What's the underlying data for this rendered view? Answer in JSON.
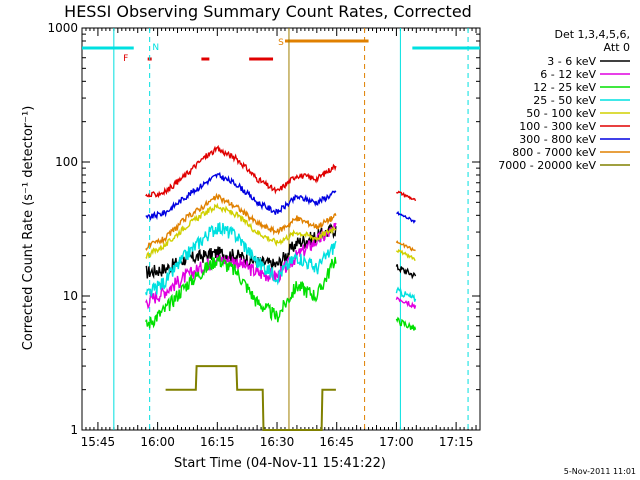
{
  "chart_data": {
    "type": "line",
    "title": "HESSI Observing Summary Count Rates, Corrected",
    "xlabel": "Start Time (04-Nov-11 15:41:22)",
    "ylabel": "Corrected Count Rate (s⁻¹ detector⁻¹)",
    "y_scale": "log",
    "ylim": [
      1,
      1000
    ],
    "xlim": [
      "15:41",
      "17:21"
    ],
    "x_ticks": [
      "15:45",
      "16:00",
      "16:15",
      "16:30",
      "16:45",
      "17:00",
      "17:15"
    ],
    "y_ticks": [
      "1",
      "10",
      "100",
      "1000"
    ],
    "legend_title": [
      "Det 1,3,4,5,6,",
      "Att 0"
    ],
    "legend_placement": "top-right, outside",
    "footer": "5-Nov-2011 11:01",
    "flags": {
      "F": {
        "label": "F",
        "color": "#e00000"
      },
      "N": {
        "label": "N",
        "color": "#00e0e0"
      },
      "S": {
        "label": "S",
        "color": "#e08000"
      }
    },
    "series": [
      {
        "name": "3 - 6 keV",
        "color": "#000000",
        "start": "15:57",
        "x": [
          "15:57",
          "16:02",
          "16:07",
          "16:12",
          "16:15",
          "16:20",
          "16:25",
          "16:30",
          "16:35",
          "16:40",
          "16:45"
        ],
        "y": [
          15,
          16,
          19,
          20,
          21,
          20,
          18,
          17,
          25,
          28,
          32
        ]
      },
      {
        "name": "6 - 12 keV",
        "color": "#e000e0",
        "start": "15:57",
        "x": [
          "15:57",
          "16:02",
          "16:07",
          "16:12",
          "16:15",
          "16:20",
          "16:25",
          "16:30",
          "16:35",
          "16:40",
          "16:45"
        ],
        "y": [
          9,
          11,
          14,
          17,
          19,
          18,
          15,
          14,
          20,
          26,
          32
        ]
      },
      {
        "name": "12 - 25 keV",
        "color": "#00e000",
        "start": "15:57",
        "x": [
          "15:57",
          "16:02",
          "16:07",
          "16:12",
          "16:15",
          "16:20",
          "16:25",
          "16:30",
          "16:35",
          "16:40",
          "16:45"
        ],
        "y": [
          6,
          8,
          12,
          16,
          19,
          15,
          9,
          7,
          12,
          10,
          20
        ]
      },
      {
        "name": "25 - 50 keV",
        "color": "#00e0e0",
        "start": "15:57",
        "x": [
          "15:57",
          "16:02",
          "16:07",
          "16:12",
          "16:15",
          "16:20",
          "16:25",
          "16:30",
          "16:35",
          "16:40",
          "16:45"
        ],
        "y": [
          10,
          13,
          20,
          28,
          33,
          28,
          18,
          14,
          20,
          16,
          25
        ]
      },
      {
        "name": "50 - 100 keV",
        "color": "#d0d000",
        "start": "15:57",
        "x": [
          "15:57",
          "16:02",
          "16:07",
          "16:12",
          "16:15",
          "16:20",
          "16:25",
          "16:30",
          "16:35",
          "16:40",
          "16:45"
        ],
        "y": [
          20,
          24,
          33,
          42,
          47,
          40,
          30,
          25,
          30,
          27,
          33
        ]
      },
      {
        "name": "100 - 300 keV",
        "color": "#e00000",
        "start": "15:57",
        "x": [
          "15:57",
          "16:02",
          "16:07",
          "16:12",
          "16:15",
          "16:20",
          "16:25",
          "16:30",
          "16:35",
          "16:40",
          "16:45"
        ],
        "y": [
          55,
          60,
          80,
          110,
          125,
          105,
          75,
          60,
          80,
          75,
          95
        ]
      },
      {
        "name": "300 - 800 keV",
        "color": "#0000e0",
        "start": "15:57",
        "x": [
          "15:57",
          "16:02",
          "16:07",
          "16:12",
          "16:15",
          "16:20",
          "16:25",
          "16:30",
          "16:35",
          "16:40",
          "16:45"
        ],
        "y": [
          38,
          42,
          55,
          70,
          80,
          68,
          50,
          42,
          55,
          50,
          60
        ]
      },
      {
        "name": "800 - 7000 keV",
        "color": "#e08000",
        "start": "15:57",
        "x": [
          "15:57",
          "16:02",
          "16:07",
          "16:12",
          "16:15",
          "16:20",
          "16:25",
          "16:30",
          "16:35",
          "16:40",
          "16:45"
        ],
        "y": [
          23,
          27,
          38,
          48,
          55,
          46,
          35,
          30,
          38,
          33,
          40
        ]
      },
      {
        "name": "7000 - 20000 keV",
        "color": "#808000",
        "start": "16:02",
        "x": [
          "16:02",
          "16:07",
          "16:12",
          "16:15",
          "16:20",
          "16:25",
          "16:30",
          "16:35",
          "16:40",
          "16:45"
        ],
        "y": [
          1.5,
          2,
          3,
          2.8,
          2.5,
          1.6,
          1.3,
          1.3,
          1.4,
          1.8
        ]
      }
    ]
  }
}
